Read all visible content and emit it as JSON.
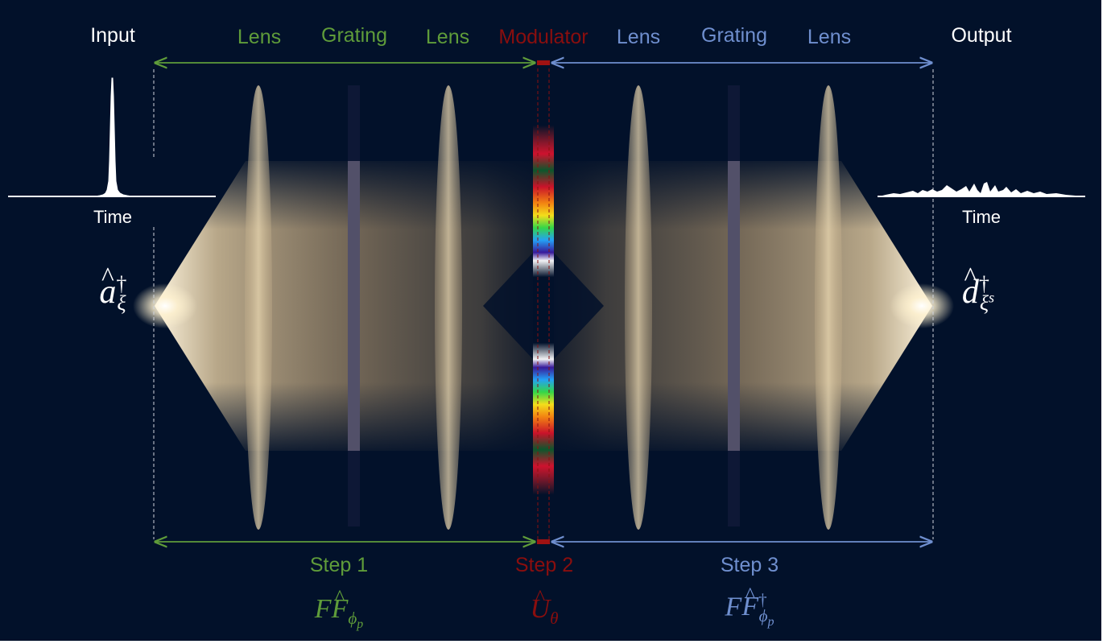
{
  "colors": {
    "background": "#02112a",
    "green": "#5f9c3a",
    "red": "#7a0c0c",
    "blue": "#6f8fcf",
    "white": "#ffffff",
    "beam": "#c9b48f"
  },
  "top": {
    "input": "Input",
    "output": "Output",
    "lens_1": "Lens",
    "grating_1": "Grating",
    "lens_2": "Lens",
    "modulator": "Modulator",
    "lens_3": "Lens",
    "grating_2": "Grating",
    "lens_4": "Lens"
  },
  "signals": {
    "input_axis": "Time",
    "output_axis": "Time"
  },
  "operators": {
    "input": {
      "base": "a",
      "sup": "†",
      "sub": "ξ"
    },
    "output": {
      "base": "d",
      "sup": "†",
      "sub": "ξ",
      "subsup": "s"
    }
  },
  "steps": {
    "step_1": {
      "label": "Step 1",
      "op_a": "F",
      "op_b": "F",
      "sub": "ϕ",
      "subsub": "p",
      "sup": ""
    },
    "step_2": {
      "label": "Step 2",
      "op": "U",
      "sub": "θ"
    },
    "step_3": {
      "label": "Step 3",
      "op_a": "F",
      "op_b": "F",
      "sub": "ϕ",
      "subsub": "p",
      "sup": "†"
    }
  }
}
